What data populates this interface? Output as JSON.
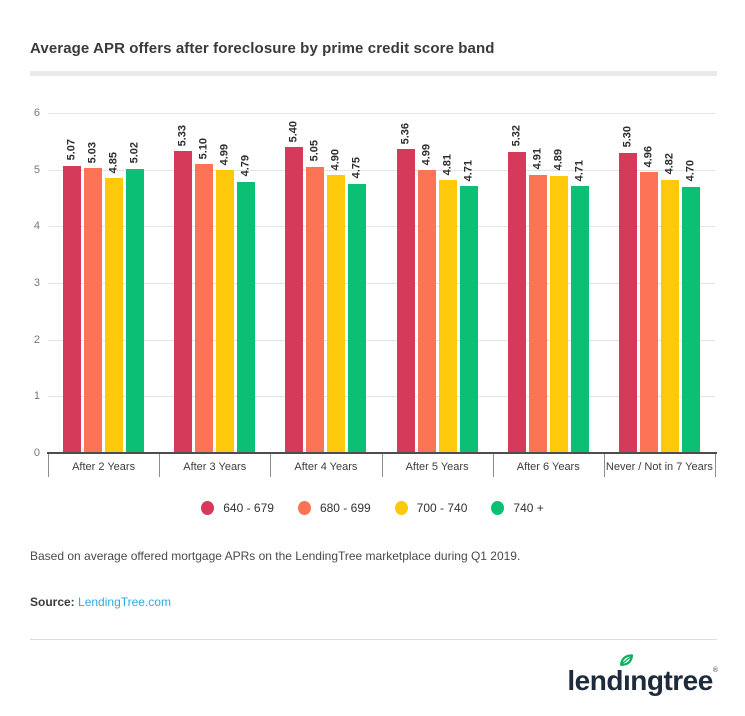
{
  "title": "Average APR offers after foreclosure by prime credit score band",
  "chart_data": {
    "type": "bar",
    "title": "Average APR offers after foreclosure by prime credit score band",
    "categories": [
      "After 2 Years",
      "After 3 Years",
      "After 4 Years",
      "After 5 Years",
      "After 6 Years",
      "Never / Not in 7 Years"
    ],
    "series": [
      {
        "name": "640 - 679",
        "color": "#d63a5b",
        "values": [
          5.07,
          5.33,
          5.4,
          5.36,
          5.32,
          5.3
        ]
      },
      {
        "name": "680 - 699",
        "color": "#fc7355",
        "values": [
          5.03,
          5.1,
          5.05,
          4.99,
          4.91,
          4.96
        ]
      },
      {
        "name": "700 - 740",
        "color": "#fec80b",
        "values": [
          4.85,
          4.99,
          4.9,
          4.81,
          4.89,
          4.82
        ]
      },
      {
        "name": "740 +",
        "color": "#0bbf75",
        "values": [
          5.02,
          4.79,
          4.75,
          4.71,
          4.71,
          4.7
        ]
      }
    ],
    "ylim": [
      0,
      6
    ],
    "yticks": [
      0,
      1,
      2,
      3,
      4,
      5,
      6
    ],
    "xlabel": "",
    "ylabel": "",
    "grid": true,
    "legend_position": "bottom",
    "value_label_decimals": 2,
    "value_label_rotation": -90
  },
  "footnote": "Based on average offered mortgage APRs on the LendingTree marketplace during Q1 2019.",
  "source": {
    "label": "Source:",
    "link_text": "LendingTree.com",
    "link_color": "#29abe2"
  },
  "logo": {
    "text": "lendingtree",
    "left": "lend",
    "i_char": "ı",
    "right": "ngtree",
    "mark": "®",
    "leaf_color": "#00b259",
    "text_color": "#1e2b3c"
  }
}
